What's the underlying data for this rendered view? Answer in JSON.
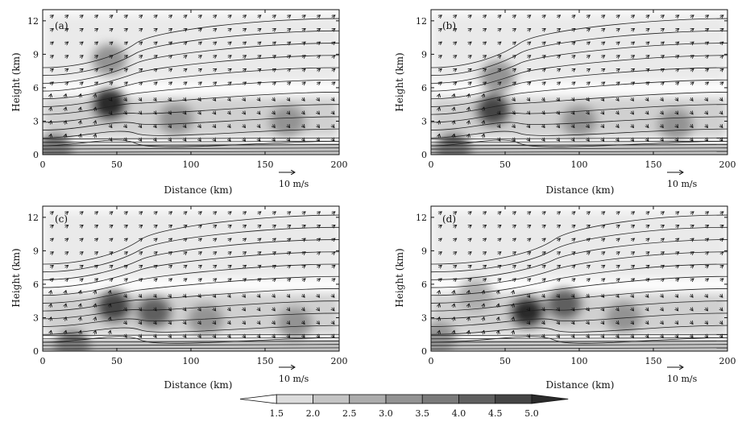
{
  "figure": {
    "colorbar": {
      "levels": [
        1.5,
        2.0,
        2.5,
        3.0,
        3.5,
        4.0,
        4.5,
        5.0
      ],
      "level_labels": [
        "1.5",
        "2.0",
        "2.5",
        "3.0",
        "3.5",
        "4.0",
        "4.5",
        "5.0"
      ],
      "colors": [
        "#ffffff",
        "#dcdcdc",
        "#c4c4c4",
        "#acacac",
        "#939393",
        "#7a7a7a",
        "#5f5f5f",
        "#454545",
        "#2b2b2b"
      ]
    },
    "reference_vector": {
      "label": "10 m/s",
      "value": 10
    }
  },
  "chart_data": [
    {
      "panel_label": "(a)",
      "type": "heatmap",
      "xlabel": "Distance (km)",
      "ylabel": "Height (km)",
      "xlim": [
        0,
        200
      ],
      "ylim": [
        0,
        13
      ],
      "xticks": [
        0,
        50,
        100,
        150,
        200
      ],
      "yticks": [
        0,
        3,
        6,
        9,
        12
      ],
      "xtick_labels": [
        "0",
        "50",
        "100",
        "150",
        "200"
      ],
      "ytick_labels": [
        "0",
        "3",
        "6",
        "9",
        "12"
      ],
      "overlays": [
        "streamlines",
        "wind vectors"
      ],
      "cores": [
        {
          "x": 45,
          "y": 4.5,
          "value": 5.0
        },
        {
          "x": 45,
          "y": 8.5,
          "value": 3.0
        },
        {
          "x": 90,
          "y": 3.2,
          "value": 3.0
        },
        {
          "x": 165,
          "y": 3.0,
          "value": 3.0
        },
        {
          "x": 8,
          "y": 0.4,
          "value": 4.0
        }
      ]
    },
    {
      "panel_label": "(b)",
      "type": "heatmap",
      "xlabel": "Distance (km)",
      "ylabel": "Height (km)",
      "xlim": [
        0,
        200
      ],
      "ylim": [
        0,
        13
      ],
      "xticks": [
        0,
        50,
        100,
        150,
        200
      ],
      "yticks": [
        0,
        3,
        6,
        9,
        12
      ],
      "xtick_labels": [
        "0",
        "50",
        "100",
        "150",
        "200"
      ],
      "ytick_labels": [
        "0",
        "3",
        "6",
        "9",
        "12"
      ],
      "overlays": [
        "streamlines",
        "wind vectors"
      ],
      "cores": [
        {
          "x": 42,
          "y": 4.0,
          "value": 4.5
        },
        {
          "x": 45,
          "y": 7.0,
          "value": 3.0
        },
        {
          "x": 100,
          "y": 3.0,
          "value": 3.0
        },
        {
          "x": 165,
          "y": 2.7,
          "value": 3.0
        },
        {
          "x": 15,
          "y": 0.4,
          "value": 4.5
        }
      ]
    },
    {
      "panel_label": "(c)",
      "type": "heatmap",
      "xlabel": "Distance (km)",
      "ylabel": "Height (km)",
      "xlim": [
        0,
        200
      ],
      "ylim": [
        0,
        13
      ],
      "xticks": [
        0,
        50,
        100,
        150,
        200
      ],
      "yticks": [
        0,
        3,
        6,
        9,
        12
      ],
      "xtick_labels": [
        "0",
        "50",
        "100",
        "150",
        "200"
      ],
      "ytick_labels": [
        "0",
        "3",
        "6",
        "9",
        "12"
      ],
      "overlays": [
        "streamlines",
        "wind vectors"
      ],
      "cores": [
        {
          "x": 48,
          "y": 4.0,
          "value": 4.5
        },
        {
          "x": 75,
          "y": 3.5,
          "value": 4.0
        },
        {
          "x": 110,
          "y": 2.8,
          "value": 3.0
        },
        {
          "x": 170,
          "y": 2.5,
          "value": 3.0
        },
        {
          "x": 20,
          "y": 0.4,
          "value": 4.0
        }
      ]
    },
    {
      "panel_label": "(d)",
      "type": "heatmap",
      "xlabel": "Distance (km)",
      "ylabel": "Height (km)",
      "xlim": [
        0,
        200
      ],
      "ylim": [
        0,
        13
      ],
      "xticks": [
        0,
        50,
        100,
        150,
        200
      ],
      "yticks": [
        0,
        3,
        6,
        9,
        12
      ],
      "xtick_labels": [
        "0",
        "50",
        "100",
        "150",
        "200"
      ],
      "ytick_labels": [
        "0",
        "3",
        "6",
        "9",
        "12"
      ],
      "overlays": [
        "streamlines",
        "wind vectors"
      ],
      "cores": [
        {
          "x": 65,
          "y": 3.5,
          "value": 5.0
        },
        {
          "x": 90,
          "y": 4.2,
          "value": 4.0
        },
        {
          "x": 130,
          "y": 3.0,
          "value": 3.0
        },
        {
          "x": 30,
          "y": 5.0,
          "value": 2.5
        },
        {
          "x": 5,
          "y": 1.2,
          "value": 3.0
        }
      ]
    }
  ]
}
